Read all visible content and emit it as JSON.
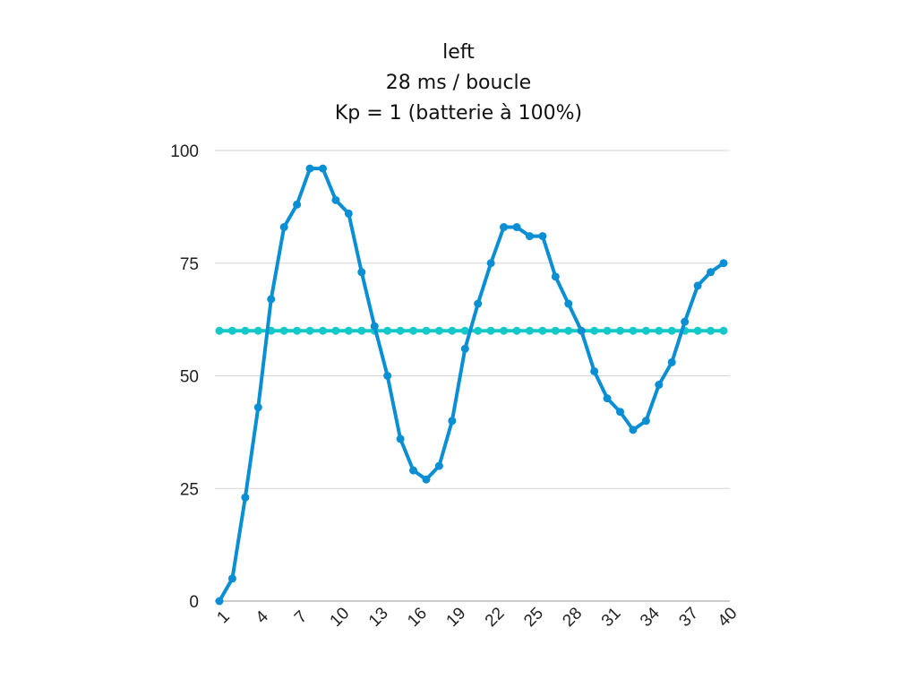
{
  "chart_data": {
    "type": "line",
    "title_lines": [
      "left",
      "28 ms / boucle",
      "Kp = 1 (batterie à 100%)"
    ],
    "xlabel": "",
    "ylabel": "",
    "ylim": [
      0,
      100
    ],
    "yticks": [
      0,
      25,
      50,
      75,
      100
    ],
    "x": [
      1,
      2,
      3,
      4,
      5,
      6,
      7,
      8,
      9,
      10,
      11,
      12,
      13,
      14,
      15,
      16,
      17,
      18,
      19,
      20,
      21,
      22,
      23,
      24,
      25,
      26,
      27,
      28,
      29,
      30,
      31,
      32,
      33,
      34,
      35,
      36,
      37,
      38,
      39,
      40
    ],
    "xtick_labels": [
      "1",
      "4",
      "7",
      "10",
      "13",
      "16",
      "19",
      "22",
      "25",
      "28",
      "31",
      "34",
      "37",
      "40"
    ],
    "grid": "horizontal",
    "legend": "none",
    "series": [
      {
        "color": "#0a8fd4",
        "values": [
          0,
          5,
          23,
          43,
          67,
          83,
          88,
          96,
          96,
          89,
          86,
          73,
          61,
          50,
          36,
          29,
          27,
          30,
          40,
          56,
          66,
          75,
          83,
          83,
          81,
          81,
          72,
          66,
          60,
          51,
          45,
          42,
          38,
          40,
          48,
          53,
          62,
          70,
          73,
          75
        ]
      },
      {
        "color": "#12c8c8",
        "values": [
          60,
          60,
          60,
          60,
          60,
          60,
          60,
          60,
          60,
          60,
          60,
          60,
          60,
          60,
          60,
          60,
          60,
          60,
          60,
          60,
          60,
          60,
          60,
          60,
          60,
          60,
          60,
          60,
          60,
          60,
          60,
          60,
          60,
          60,
          60,
          60,
          60,
          60,
          60,
          60
        ]
      }
    ]
  }
}
